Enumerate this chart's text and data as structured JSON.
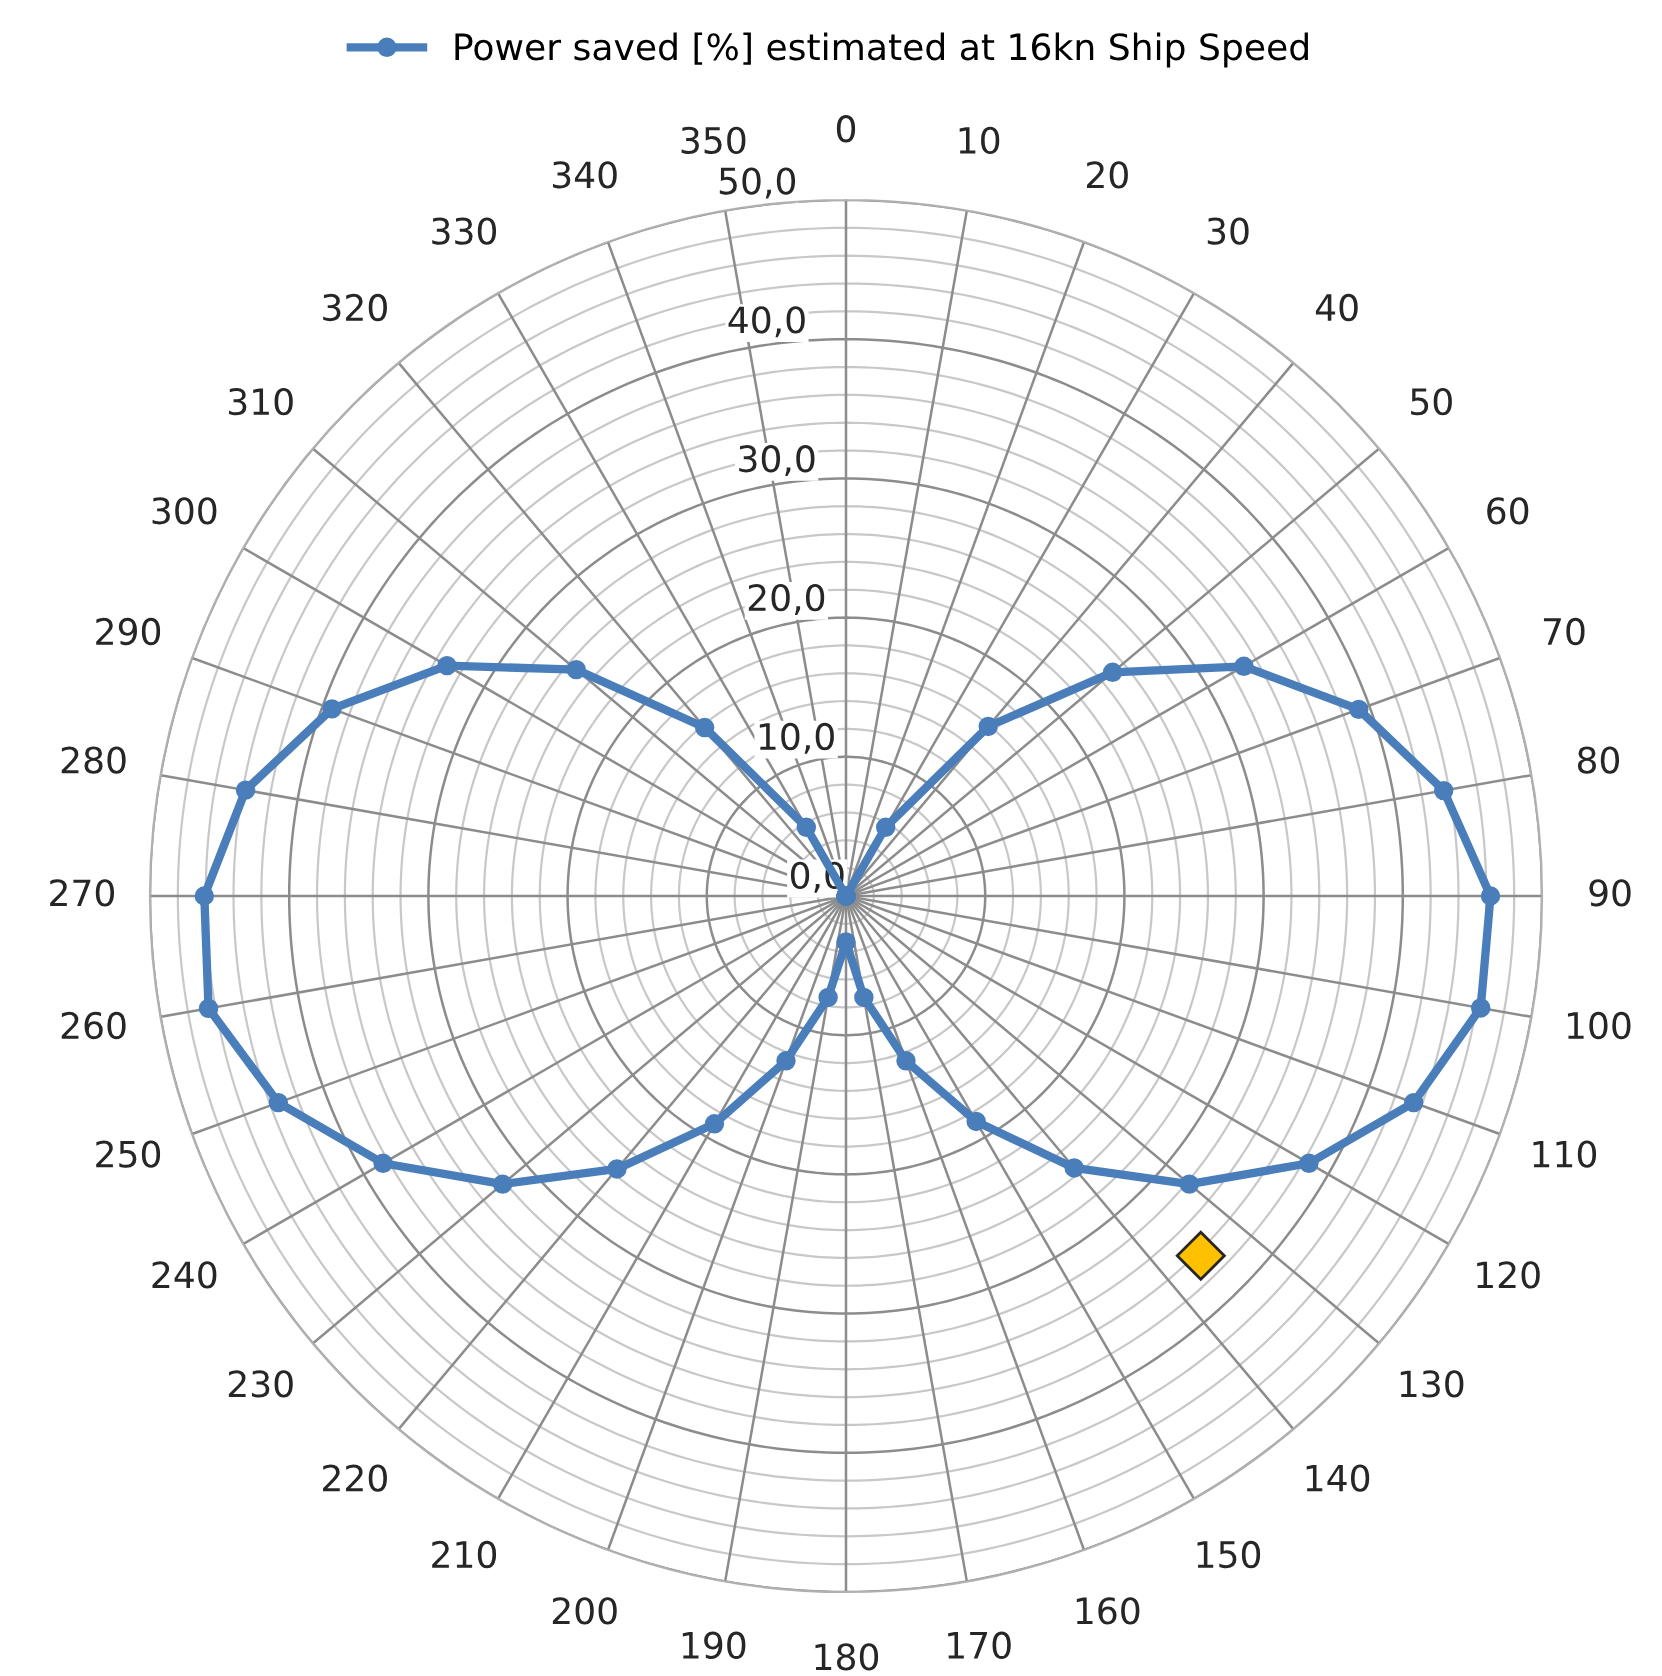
{
  "chart_data": {
    "type": "radar",
    "categories": [
      "0",
      "10",
      "20",
      "30",
      "40",
      "50",
      "60",
      "70",
      "80",
      "90",
      "100",
      "110",
      "120",
      "130",
      "140",
      "150",
      "160",
      "170",
      "180",
      "190",
      "200",
      "210",
      "220",
      "230",
      "240",
      "250",
      "260",
      "270",
      "280",
      "290",
      "300",
      "310",
      "320",
      "330",
      "340",
      "350"
    ],
    "series": [
      {
        "name": "Power saved [%] estimated at 16kn Ship Speed",
        "color": "#4a7ebb",
        "values": [
          0,
          0,
          0,
          5.7,
          15.9,
          25.0,
          33.0,
          39.2,
          43.6,
          46.3,
          46.3,
          43.4,
          38.4,
          32.2,
          25.5,
          18.7,
          12.6,
          7.4,
          3.3,
          7.4,
          12.6,
          18.9,
          25.6,
          32.2,
          38.4,
          43.4,
          46.5,
          46.1,
          43.8,
          39.3,
          33.1,
          25.3,
          15.8,
          5.7,
          0,
          0
        ]
      }
    ],
    "ylim": [
      0,
      50
    ],
    "yticks": [
      {
        "value": 0,
        "label": "0,0"
      },
      {
        "value": 10,
        "label": "10,0"
      },
      {
        "value": 20,
        "label": "20,0"
      },
      {
        "value": 30,
        "label": "30,0"
      },
      {
        "value": 40,
        "label": "40,0"
      },
      {
        "value": 50,
        "label": "50,0"
      }
    ],
    "grid": true,
    "legend": "top",
    "marker": "circle",
    "line_style": "solid"
  }
}
